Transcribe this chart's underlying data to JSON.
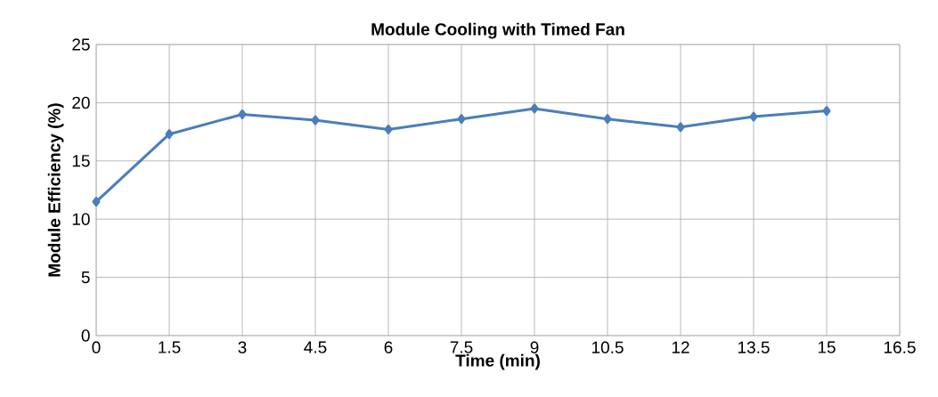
{
  "chart_data": {
    "type": "line",
    "title": "Module Cooling with Timed Fan",
    "xlabel": "Time (min)",
    "ylabel": "Module Efficiency (%)",
    "x": [
      0,
      1.5,
      3,
      4.5,
      6,
      7.5,
      9,
      10.5,
      12,
      13.5,
      15
    ],
    "series": [
      {
        "color": "#4a7ebb",
        "values": [
          11.5,
          17.3,
          19.0,
          18.5,
          17.7,
          18.6,
          19.5,
          18.6,
          17.9,
          18.8,
          19.3
        ]
      }
    ],
    "xlim": [
      0,
      16.5
    ],
    "xticks": [
      0,
      1.5,
      3,
      4.5,
      6,
      7.5,
      9,
      10.5,
      12,
      13.5,
      15,
      16.5
    ],
    "ylim": [
      0,
      25
    ],
    "yticks": [
      0,
      5,
      10,
      15,
      20,
      25
    ],
    "grid": true,
    "marker": "diamond",
    "line_style": "solid"
  }
}
